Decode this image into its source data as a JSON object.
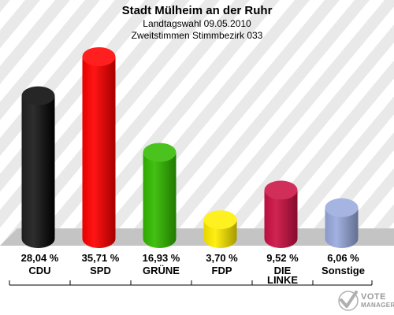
{
  "header": {
    "title": "Stadt Mülheim an der Ruhr",
    "subtitle1": "Landtagswahl 09.05.2010",
    "subtitle2": "Zweitstimmen Stimmbezirk 033"
  },
  "logo": {
    "line1": "VOTE",
    "line2": "MANAGER"
  },
  "chart_data": {
    "type": "bar",
    "title": "Stadt Mülheim an der Ruhr",
    "subtitle": "Landtagswahl 09.05.2010 / Zweitstimmen Stimmbezirk 033",
    "categories": [
      "CDU",
      "SPD",
      "GRÜNE",
      "FDP",
      "DIE LINKE",
      "Sonstige"
    ],
    "category_lines": [
      [
        "CDU"
      ],
      [
        "SPD"
      ],
      [
        "GRÜNE"
      ],
      [
        "FDP"
      ],
      [
        "DIE",
        "LINKE"
      ],
      [
        "Sonstige"
      ]
    ],
    "values": [
      28.04,
      35.71,
      16.93,
      3.7,
      9.52,
      6.06
    ],
    "value_labels": [
      "28,04 %",
      "35,71 %",
      "16,93 %",
      "3,70 %",
      "9,52 %",
      "6,06 %"
    ],
    "colors": [
      "#000000",
      "#ff0000",
      "#33bb00",
      "#ffee00",
      "#cc1144",
      "#99aadd"
    ],
    "ylim": [
      0,
      35.71
    ],
    "xlabel": "",
    "ylabel": "",
    "grid": false,
    "legend": "none"
  }
}
